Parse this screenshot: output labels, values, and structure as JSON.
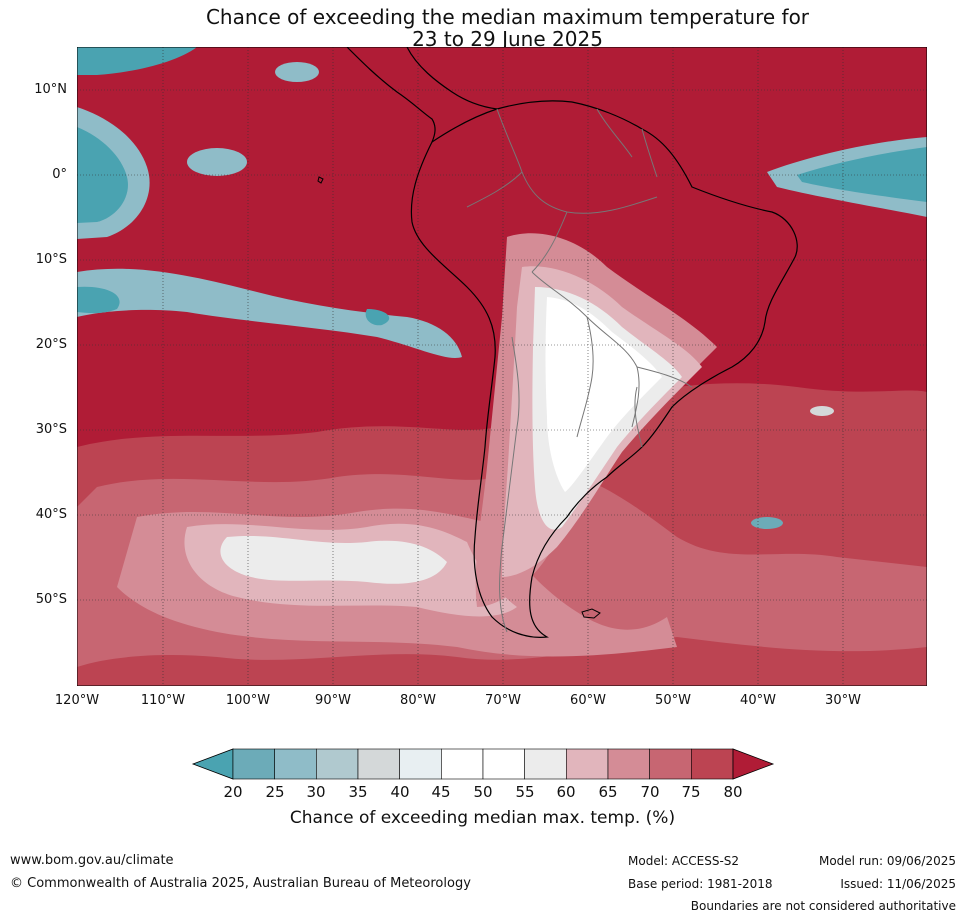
{
  "title_line1": "Chance of exceeding the median maximum temperature for",
  "title_line2": "23 to 29 June 2025",
  "lat_labels": [
    "10°N",
    "0°",
    "10°S",
    "20°S",
    "30°S",
    "40°S",
    "50°S"
  ],
  "lon_labels": [
    "120°W",
    "110°W",
    "100°W",
    "90°W",
    "80°W",
    "70°W",
    "60°W",
    "50°W",
    "40°W",
    "30°W"
  ],
  "colorbar": {
    "ticks": [
      "20",
      "25",
      "30",
      "35",
      "40",
      "45",
      "50",
      "55",
      "60",
      "65",
      "70",
      "75",
      "80"
    ],
    "label": "Chance of exceeding median max. temp. (%)",
    "colors": [
      "#4aa3b1",
      "#6cabb8",
      "#8fbcc8",
      "#b0c9cf",
      "#d4d8d9",
      "#e8eff2",
      "#ffffff",
      "#ffffff",
      "#ececec",
      "#e1b5bc",
      "#d48c96",
      "#c76672",
      "#bc4452",
      "#b01c36"
    ]
  },
  "map": {
    "dominant_color": "#b01c36",
    "cool_color": "#4aa3b1"
  },
  "footer": {
    "website": "www.bom.gov.au/climate",
    "copyright": "© Commonwealth of Australia 2025, Australian Bureau of Meteorology",
    "model": "Model: ACCESS-S2",
    "base_period": "Base period: 1981-2018",
    "model_run": "Model run: 09/06/2025",
    "issued": "Issued: 11/06/2025",
    "disclaimer": "Boundaries are not considered authoritative"
  }
}
